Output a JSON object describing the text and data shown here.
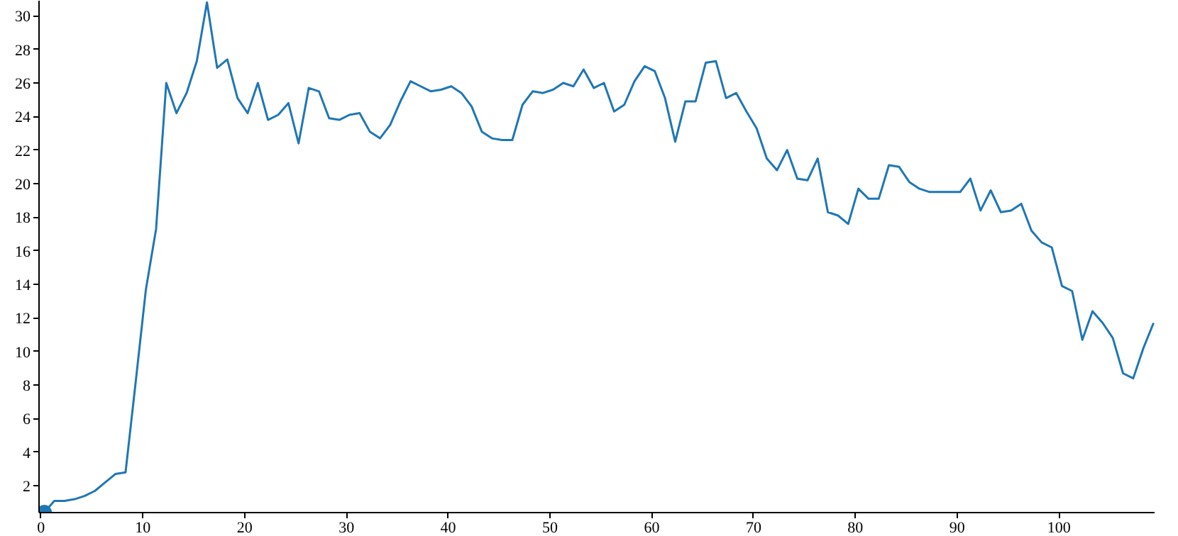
{
  "chart_data": {
    "type": "line",
    "xlim": [
      -0.2,
      109.4
    ],
    "ylim": [
      0.4,
      30.9
    ],
    "xticks": [
      0,
      10,
      20,
      30,
      40,
      50,
      60,
      70,
      80,
      90,
      100
    ],
    "yticks": [
      2,
      4,
      6,
      8,
      10,
      12,
      14,
      16,
      18,
      20,
      22,
      24,
      26,
      28,
      30
    ],
    "grid": false,
    "series": [
      {
        "color": "#1f77b4",
        "x": [
          0.3,
          1.3,
          2.3,
          3.3,
          4.3,
          5.3,
          6.3,
          7.3,
          8.3,
          9.3,
          10.3,
          11.3,
          12.3,
          13.3,
          14.3,
          15.3,
          16.3,
          17.3,
          18.3,
          19.3,
          20.3,
          21.3,
          22.3,
          23.3,
          24.3,
          25.3,
          26.3,
          27.3,
          28.3,
          29.3,
          30.3,
          31.3,
          32.3,
          33.3,
          34.3,
          35.3,
          36.3,
          37.3,
          38.3,
          39.3,
          40.3,
          41.3,
          42.3,
          43.3,
          44.3,
          45.3,
          46.3,
          47.3,
          48.3,
          49.3,
          50.3,
          51.3,
          52.3,
          53.3,
          54.3,
          55.3,
          56.3,
          57.3,
          58.3,
          59.3,
          60.3,
          61.3,
          62.3,
          63.3,
          64.3,
          65.3,
          66.3,
          67.3,
          68.3,
          69.3,
          70.3,
          71.3,
          72.3,
          73.3,
          74.3,
          75.3,
          76.3,
          77.3,
          78.3,
          79.3,
          80.3,
          81.3,
          82.3,
          83.3,
          84.3,
          85.3,
          86.3,
          87.3,
          88.3,
          89.3,
          90.3,
          91.3,
          92.3,
          93.3,
          94.3,
          95.3,
          96.3,
          97.3,
          98.3,
          99.3,
          100.3,
          101.3,
          102.3,
          103.3,
          104.3,
          105.3,
          106.3,
          107.3,
          108.3,
          109.3
        ],
        "values": [
          0.4,
          1.1,
          1.1,
          1.2,
          1.4,
          1.7,
          2.2,
          2.7,
          2.8,
          8.2,
          13.7,
          17.3,
          26.0,
          24.2,
          25.4,
          27.3,
          30.8,
          26.9,
          27.4,
          25.1,
          24.2,
          26.0,
          23.8,
          24.1,
          24.8,
          22.4,
          25.7,
          25.5,
          23.9,
          23.8,
          24.1,
          24.2,
          23.1,
          22.7,
          23.5,
          24.9,
          26.1,
          25.8,
          25.5,
          25.6,
          25.8,
          25.4,
          24.6,
          23.1,
          22.7,
          22.6,
          22.6,
          24.7,
          25.5,
          25.4,
          25.6,
          26.0,
          25.8,
          26.8,
          25.7,
          26.0,
          24.3,
          24.7,
          26.1,
          27.0,
          26.7,
          25.1,
          22.5,
          24.9,
          24.9,
          27.2,
          27.3,
          25.1,
          25.4,
          24.3,
          23.3,
          21.5,
          20.8,
          22.0,
          20.3,
          20.2,
          21.5,
          18.3,
          18.1,
          17.6,
          19.7,
          19.1,
          19.1,
          21.1,
          21.0,
          20.1,
          19.7,
          19.5,
          19.5,
          19.5,
          19.5,
          20.3,
          18.4,
          19.6,
          18.3,
          18.4,
          18.8,
          17.2,
          16.5,
          16.2,
          13.9,
          13.6,
          10.7,
          12.4,
          11.7,
          10.8,
          8.7,
          8.4,
          10.2,
          11.7
        ]
      },
      {
        "type": "scatter",
        "color": "#1f77b4",
        "marker": "circle",
        "x": [
          0.3
        ],
        "values": [
          0.4
        ]
      }
    ]
  }
}
